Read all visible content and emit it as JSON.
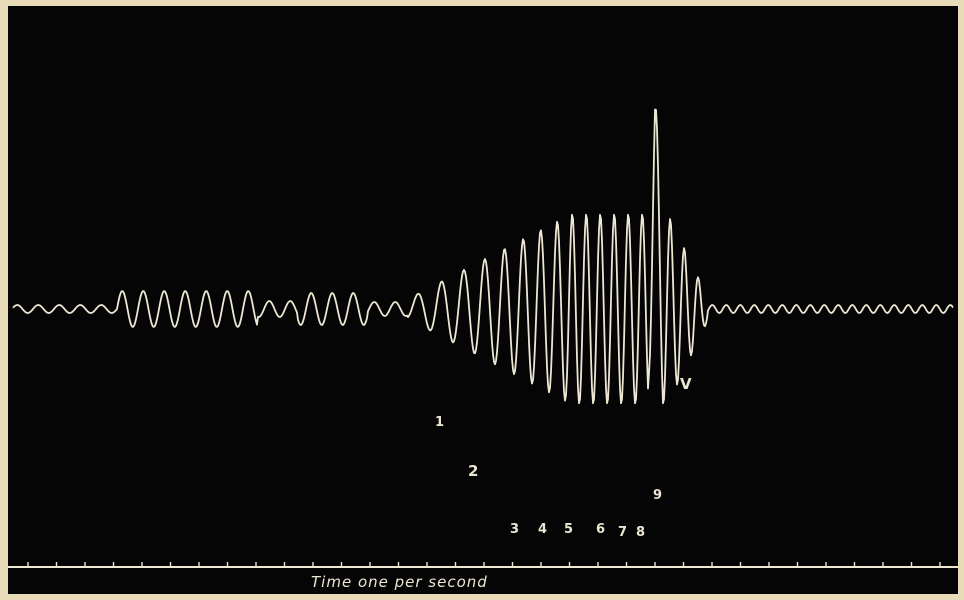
{
  "chart_data": {
    "type": "line",
    "title": "",
    "xlabel": "Time one per second",
    "ylabel": "",
    "grid": false,
    "trace_color": "#ece6d2",
    "background_color": "#050505",
    "border_color": "#e8dcb8",
    "peak_labels": [
      "1",
      "2",
      "3",
      "4",
      "5",
      "6",
      "7",
      "8",
      "9",
      "V"
    ]
  }
}
